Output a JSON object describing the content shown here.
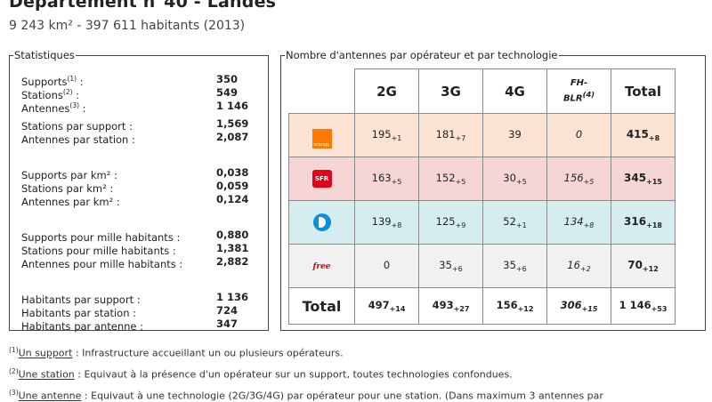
{
  "header": {
    "title": "Département n°40 - Landes",
    "subtitle": "9 243 km² - 397 611 habitants (2013)"
  },
  "stats": {
    "legend": "Statistiques",
    "rows": [
      {
        "label": "Supports",
        "sup": "(1)",
        "suffix": " :",
        "value": "350"
      },
      {
        "label": "Stations",
        "sup": "(2)",
        "suffix": " :",
        "value": "549"
      },
      {
        "label": "Antennes",
        "sup": "(3)",
        "suffix": " :",
        "value": "1 146"
      },
      {
        "label": "Stations par support :",
        "sup": "",
        "suffix": "",
        "value": "1,569"
      },
      {
        "label": "Antennes par station :",
        "sup": "",
        "suffix": "",
        "value": "2,087"
      },
      {
        "label": "Supports par km² :",
        "sup": "",
        "suffix": "",
        "value": "0,038"
      },
      {
        "label": "Stations par km² :",
        "sup": "",
        "suffix": "",
        "value": "0,059"
      },
      {
        "label": "Antennes par km² :",
        "sup": "",
        "suffix": "",
        "value": "0,124"
      },
      {
        "label": "Supports pour mille habitants :",
        "sup": "",
        "suffix": "",
        "value": "0,880"
      },
      {
        "label": "Stations pour mille habitants :",
        "sup": "",
        "suffix": "",
        "value": "1,381"
      },
      {
        "label": "Antennes pour mille habitants :",
        "sup": "",
        "suffix": "",
        "value": "2,882"
      },
      {
        "label": "Habitants par support :",
        "sup": "",
        "suffix": "",
        "value": "1 136"
      },
      {
        "label": "Habitants par station :",
        "sup": "",
        "suffix": "",
        "value": "724"
      },
      {
        "label": "Habitants par antenne :",
        "sup": "",
        "suffix": "",
        "value": "347"
      }
    ]
  },
  "operators": {
    "legend": "Nombre d'antennes par opérateur et par technologie",
    "headers": {
      "c2g": "2G",
      "c3g": "3G",
      "c4g": "4G",
      "fh": "FH-",
      "fh2": "BLR",
      "fh_sup": "(4)",
      "total": "Total"
    },
    "rows": [
      {
        "logo": "orange",
        "logo_text": "orange",
        "c2g": "195",
        "c2g_d": "+1",
        "c3g": "181",
        "c3g_d": "+7",
        "c4g": "39",
        "c4g_d": "",
        "fh": "0",
        "fh_d": "",
        "total": "415",
        "total_d": "+8"
      },
      {
        "logo": "sfr",
        "logo_text": "SFR",
        "c2g": "163",
        "c2g_d": "+5",
        "c3g": "152",
        "c3g_d": "+5",
        "c4g": "30",
        "c4g_d": "+5",
        "fh": "156",
        "fh_d": "+5",
        "total": "345",
        "total_d": "+15"
      },
      {
        "logo": "bouygues",
        "logo_text": "",
        "c2g": "139",
        "c2g_d": "+8",
        "c3g": "125",
        "c3g_d": "+9",
        "c4g": "52",
        "c4g_d": "+1",
        "fh": "134",
        "fh_d": "+8",
        "total": "316",
        "total_d": "+18"
      },
      {
        "logo": "free",
        "logo_text": "free",
        "c2g": "0",
        "c2g_d": "",
        "c3g": "35",
        "c3g_d": "+6",
        "c4g": "35",
        "c4g_d": "+6",
        "fh": "16",
        "fh_d": "+2",
        "total": "70",
        "total_d": "+12"
      }
    ],
    "total_row": {
      "label": "Total",
      "c2g": "497",
      "c2g_d": "+14",
      "c3g": "493",
      "c3g_d": "+27",
      "c4g": "156",
      "c4g_d": "+12",
      "fh": "306",
      "fh_d": "+15",
      "total": "1 146",
      "total_d": "+53"
    }
  },
  "footnotes": [
    {
      "sup": "(1)",
      "term": "Un support",
      "text": " : Infrastructure accueillant un ou plusieurs opérateurs."
    },
    {
      "sup": "(2)",
      "term": "Une station",
      "text": " : Equivaut à la présence d'un opérateur sur un support, toutes technologies confondues."
    },
    {
      "sup": "(3)",
      "term": "Une antenne",
      "text": " : Equivaut à une technologie (2G/3G/4G) par opérateur pour une station. (Dans maximum 3 antennes par"
    }
  ]
}
